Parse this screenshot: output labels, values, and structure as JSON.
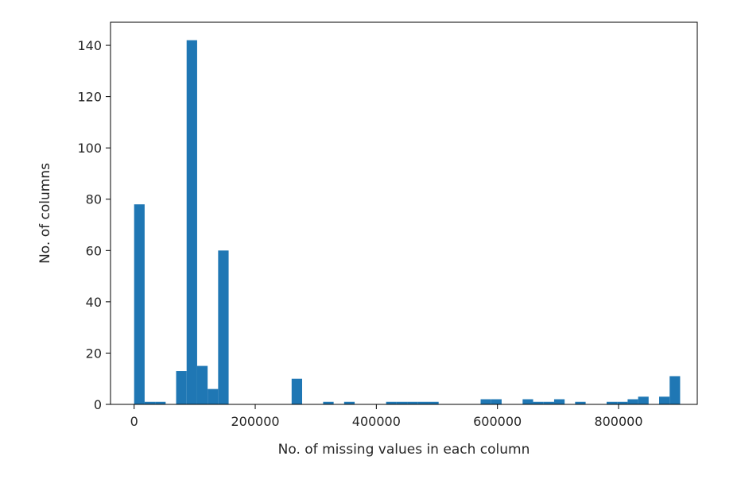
{
  "chart_data": {
    "type": "bar",
    "subtype": "histogram",
    "title": "",
    "xlabel": "No. of missing values in each column",
    "ylabel": "No. of columns",
    "xlim": [
      -39000,
      930000
    ],
    "ylim": [
      0,
      149
    ],
    "xticks": [
      0,
      200000,
      400000,
      600000,
      800000
    ],
    "xtick_labels": [
      "0",
      "200000",
      "400000",
      "600000",
      "800000"
    ],
    "yticks": [
      0,
      20,
      40,
      60,
      80,
      100,
      120,
      140
    ],
    "ytick_labels": [
      "0",
      "20",
      "40",
      "60",
      "80",
      "100",
      "120",
      "140"
    ],
    "bin_start": 0,
    "bin_width": 17340,
    "values": [
      78,
      1,
      1,
      0,
      13,
      142,
      15,
      6,
      60,
      0,
      0,
      0,
      0,
      0,
      0,
      10,
      0,
      0,
      1,
      0,
      1,
      0,
      0,
      0,
      1,
      1,
      1,
      1,
      1,
      0,
      0,
      0,
      0,
      2,
      2,
      0,
      0,
      2,
      1,
      1,
      2,
      0,
      1,
      0,
      0,
      1,
      1,
      2,
      3,
      0,
      3,
      11
    ],
    "grid": false,
    "legend": "none",
    "color": "#1f77b4"
  }
}
